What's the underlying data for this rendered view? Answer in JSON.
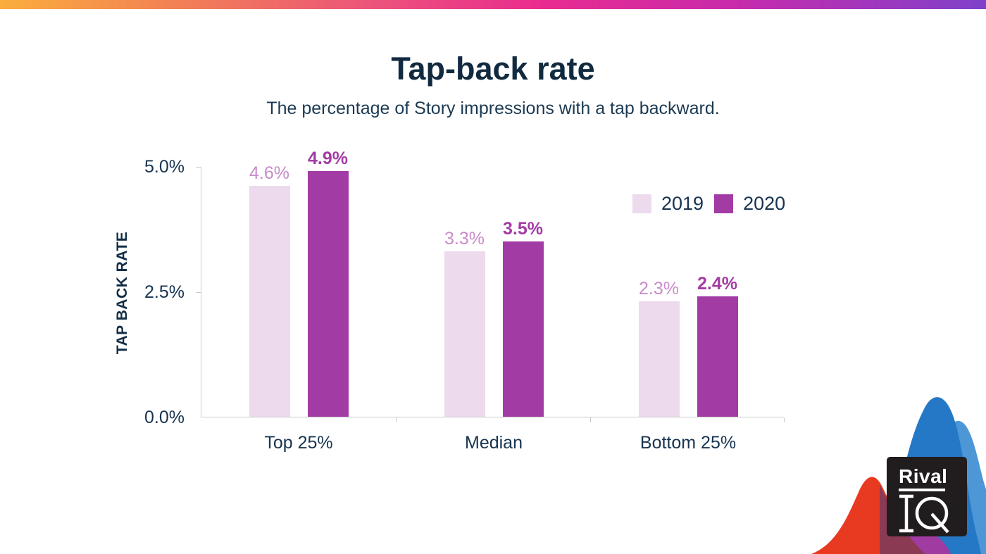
{
  "header": {
    "title": "Tap-back rate",
    "subtitle": "The percentage of Story impressions with a tap backward."
  },
  "chart_data": {
    "type": "bar",
    "title": "Tap-back rate",
    "subtitle": "The percentage of Story impressions with a tap backward.",
    "xlabel": "",
    "ylabel": "TAP BACK RATE",
    "categories": [
      "Top 25%",
      "Median",
      "Bottom 25%"
    ],
    "series": [
      {
        "name": "2019",
        "values": [
          4.6,
          3.3,
          2.3
        ],
        "display_labels": [
          "4.6%",
          "3.3%",
          "2.3%"
        ],
        "color": "#EDDAED",
        "label_color": "#C98CC9"
      },
      {
        "name": "2020",
        "values": [
          4.9,
          3.5,
          2.4
        ],
        "display_labels": [
          "4.9%",
          "3.5%",
          "2.4%"
        ],
        "color": "#A23CA4",
        "label_color": "#A33CA4"
      }
    ],
    "ylim": [
      0,
      5
    ],
    "yticks": [
      "0.0%",
      "2.5%",
      "5.0%"
    ],
    "unit": "%",
    "grid": false,
    "legend_position": "top-right"
  },
  "branding": {
    "logo_word": "Rival",
    "logo_monogram": "IQ"
  },
  "colors": {
    "navy_text": "#173450",
    "title_navy": "#112A40",
    "axis_gray": "#C9C9C9",
    "bar_2019": "#EDDAED",
    "bar_2020": "#A23CA4",
    "label_2019": "#C98CC9",
    "label_2020": "#A33CA4",
    "gradient_left": "#FBAD3D",
    "gradient_mid": "#E92B90",
    "gradient_right": "#7F41CB",
    "logo_bg": "#211D1E",
    "blob_blue": "#2478C5",
    "blob_light_blue": "#4E97D6",
    "blob_red": "#E83A20",
    "blob_maroon": "#8B3A54",
    "blob_purple": "#9F3BA1"
  }
}
